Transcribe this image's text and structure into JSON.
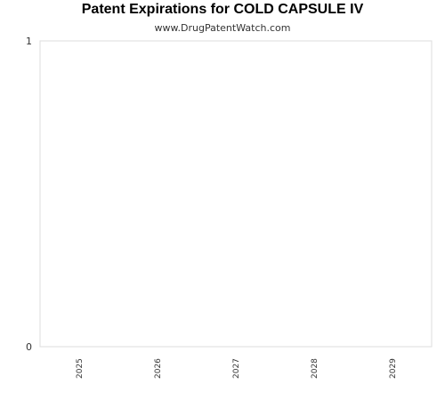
{
  "chart_data": {
    "type": "bar",
    "title": "Patent Expirations for COLD CAPSULE IV",
    "subtitle": "www.DrugPatentWatch.com",
    "xlabel": "",
    "ylabel": "",
    "categories": [
      "2025",
      "2026",
      "2027",
      "2028",
      "2029"
    ],
    "values": [
      0,
      0,
      0,
      0,
      0
    ],
    "ylim": [
      0,
      1
    ],
    "y_ticks": [
      "0",
      "1"
    ],
    "grid": false,
    "legend": "none",
    "colors": {
      "frame": "#dddddd",
      "text": "#333333",
      "title": "#000000"
    }
  }
}
